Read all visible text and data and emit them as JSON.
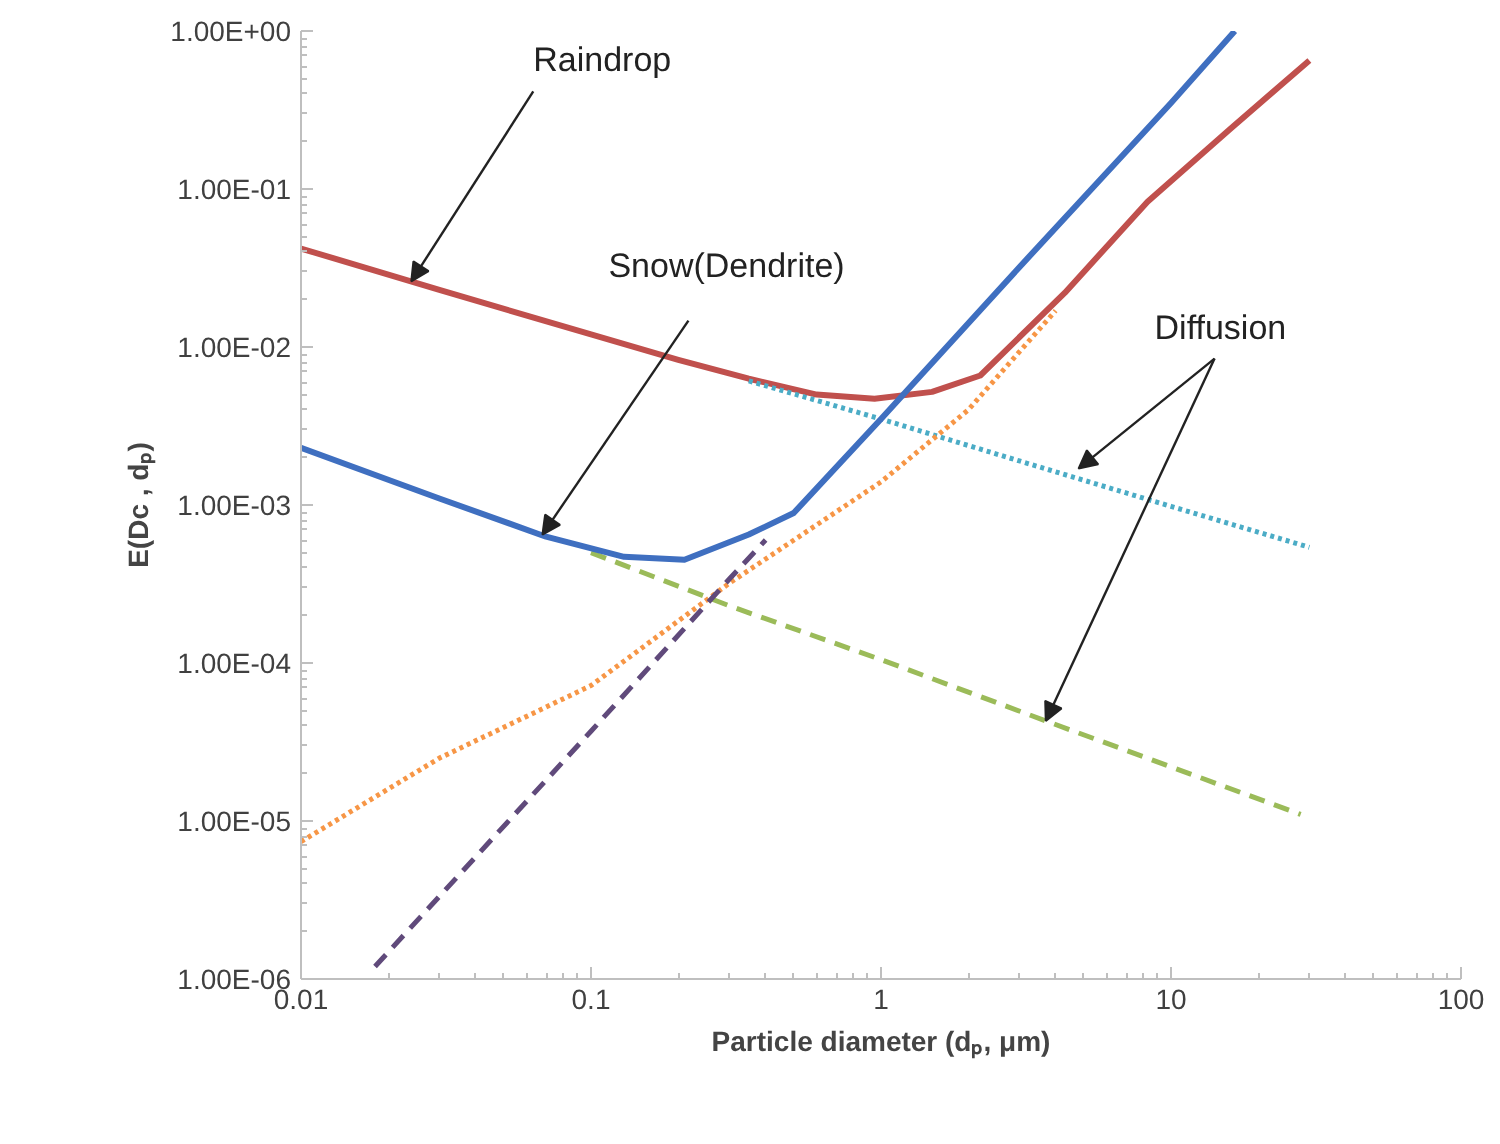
{
  "chart_data": {
    "type": "line",
    "xlabel": "Particle diameter (dₚ, μm)",
    "ylabel": "E(Dc , dₚ)",
    "log": "xy",
    "grid": false,
    "xlim": [
      0.01,
      100
    ],
    "xticks": [
      0.01,
      0.1,
      1,
      10,
      100
    ],
    "ylim": [
      1e-06,
      1
    ],
    "yticks": [
      {
        "value": 1e-06,
        "label": "1.00E-06"
      },
      {
        "value": 1e-05,
        "label": "1.00E-05"
      },
      {
        "value": 0.0001,
        "label": "1.00E-04"
      },
      {
        "value": 0.001,
        "label": "1.00E-03"
      },
      {
        "value": 0.01,
        "label": "1.00E-02"
      },
      {
        "value": 0.1,
        "label": "1.00E-01"
      },
      {
        "value": 1,
        "label": "1.00E+00"
      }
    ],
    "series": [
      {
        "color": "#c0504d",
        "line_style": "solid",
        "x": [
          0.01,
          0.03,
          0.1,
          0.2,
          0.35,
          0.6,
          0.95,
          1.5,
          2.2,
          4.3,
          8.3,
          16,
          30
        ],
        "values": [
          0.042,
          0.023,
          0.012,
          0.0083,
          0.0063,
          0.005,
          0.0047,
          0.0052,
          0.0066,
          0.022,
          0.083,
          0.24,
          0.65
        ]
      },
      {
        "color": "#4bacc6",
        "line_style": "dotted",
        "x": [
          0.35,
          1,
          3,
          10,
          30
        ],
        "values": [
          0.0061,
          0.0035,
          0.0019,
          0.00098,
          0.00054
        ]
      },
      {
        "color": "#f79646",
        "line_style": "dotted",
        "x": [
          0.01,
          0.03,
          0.1,
          0.3,
          1,
          2,
          4
        ],
        "values": [
          7.4e-06,
          2.5e-05,
          7.2e-05,
          0.00032,
          0.0014,
          0.004,
          0.017
        ]
      },
      {
        "color": "#9bbb59",
        "line_style": "dashed",
        "x": [
          0.1,
          0.3,
          1,
          3.7,
          28
        ],
        "values": [
          0.0005,
          0.00023,
          0.000105,
          4.3e-05,
          1.1e-05
        ]
      },
      {
        "color": "#604a7b",
        "line_style": "dashed",
        "x": [
          0.018,
          0.1,
          0.3,
          0.4
        ],
        "values": [
          1.2e-06,
          3.7e-05,
          0.00034,
          0.0006
        ]
      },
      {
        "color": "#3f6fc0",
        "line_style": "solid",
        "x": [
          0.01,
          0.03,
          0.07,
          0.13,
          0.21,
          0.35,
          0.5,
          1,
          3,
          10,
          16.6
        ],
        "values": [
          0.0023,
          0.0011,
          0.00063,
          0.00047,
          0.00045,
          0.00065,
          0.00089,
          0.0035,
          0.032,
          0.35,
          1.0
        ]
      }
    ],
    "annotations": [
      {
        "text": "Raindrop",
        "x": 0.024,
        "y": 0.026
      },
      {
        "text": "Snow(Dendrite)",
        "x": 0.068,
        "y": 0.00065
      },
      {
        "text": "Diffusion",
        "x": 4.8,
        "y": 0.0017
      }
    ]
  }
}
